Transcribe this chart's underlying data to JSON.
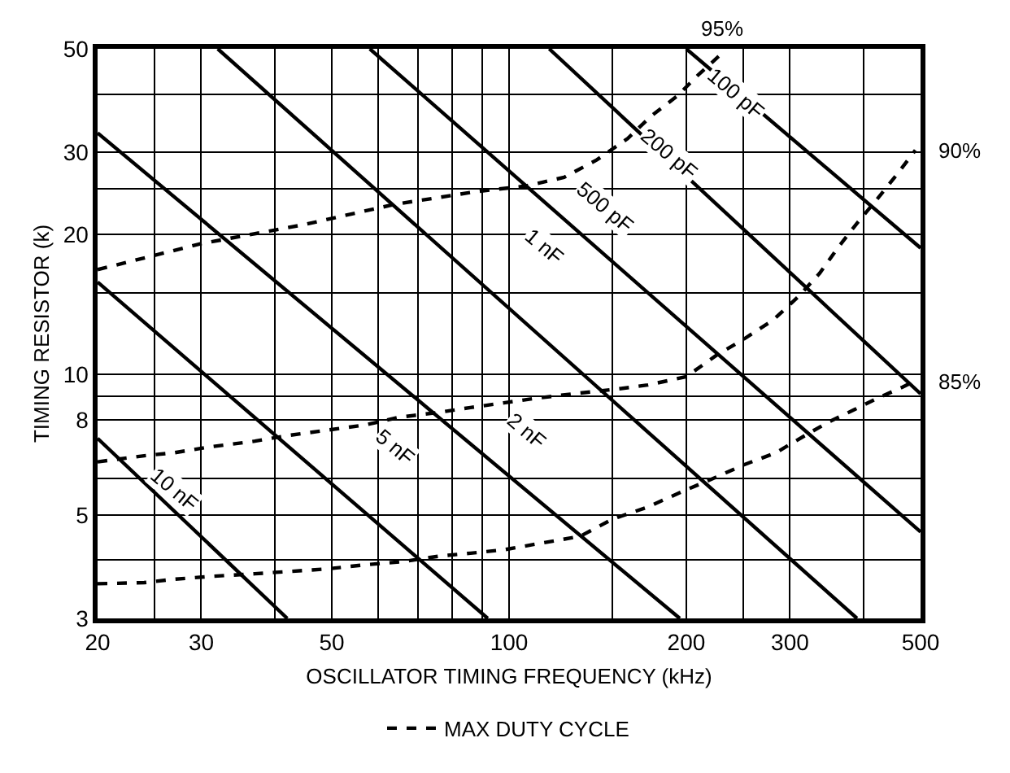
{
  "chart_data": {
    "type": "line",
    "xlabel": "OSCILLATOR TIMING FREQUENCY (kHz)",
    "ylabel": "TIMING RESISTOR (k)",
    "log": "xy",
    "grid": true,
    "legend": "bottom",
    "marker": "none",
    "xlim": [
      20,
      500
    ],
    "ylim": [
      3,
      50
    ],
    "xticks": [
      20,
      {
        "value": 25,
        "label": null
      },
      30,
      {
        "value": 40,
        "label": null
      },
      50,
      {
        "value": 60,
        "label": null
      },
      {
        "value": 70,
        "label": null
      },
      {
        "value": 80,
        "label": null
      },
      {
        "value": 90,
        "label": null
      },
      100,
      {
        "value": 150,
        "label": null
      },
      200,
      {
        "value": 250,
        "label": null
      },
      300,
      {
        "value": 400,
        "label": null
      },
      500
    ],
    "yticks": [
      3,
      {
        "value": 4,
        "label": null
      },
      5,
      {
        "value": 6,
        "label": null
      },
      8,
      {
        "value": 9,
        "label": null
      },
      10,
      {
        "value": 15,
        "label": null
      },
      20,
      {
        "value": 25,
        "label": null
      },
      30,
      {
        "value": 40,
        "label": null
      },
      50
    ],
    "series": [
      {
        "color": "#000000",
        "line_style": "solid",
        "x": [
          20,
          42
        ],
        "values": [
          7.3,
          3
        ]
      },
      {
        "color": "#000000",
        "line_style": "solid",
        "x": [
          20,
          92
        ],
        "values": [
          15.8,
          3
        ]
      },
      {
        "color": "#000000",
        "line_style": "solid",
        "x": [
          20,
          195
        ],
        "values": [
          33,
          3
        ]
      },
      {
        "color": "#000000",
        "line_style": "solid",
        "x": [
          32,
          390
        ],
        "values": [
          50,
          3
        ]
      },
      {
        "color": "#000000",
        "line_style": "solid",
        "x": [
          58,
          500
        ],
        "values": [
          50,
          4.6
        ]
      },
      {
        "color": "#000000",
        "line_style": "solid",
        "x": [
          117,
          500
        ],
        "values": [
          50,
          9.1
        ]
      },
      {
        "color": "#000000",
        "line_style": "solid",
        "x": [
          200,
          500
        ],
        "values": [
          50,
          18.7
        ]
      },
      {
        "name": "MAX DUTY CYCLE",
        "color": "#000000",
        "line_style": "dashed",
        "x": [
          20,
          30,
          45,
          64,
          88,
          107,
          124,
          141,
          159,
          174,
          193,
          209,
          230
        ],
        "values": [
          16.8,
          19.1,
          21,
          23.2,
          24.7,
          25.4,
          26.5,
          28.9,
          32.1,
          35.8,
          39.6,
          43.8,
          48.9
        ]
      },
      {
        "color": "#000000",
        "line_style": "dashed",
        "x": [
          20,
          24,
          27,
          31,
          37,
          42,
          49,
          57,
          65,
          76,
          86,
          98,
          111,
          129,
          151,
          172,
          200,
          225,
          250,
          281,
          310,
          337,
          364,
          392,
          422,
          455,
          490
        ],
        "values": [
          6.5,
          6.7,
          6.8,
          7.0,
          7.2,
          7.4,
          7.6,
          7.8,
          8.1,
          8.3,
          8.5,
          8.7,
          8.9,
          9.1,
          9.3,
          9.5,
          9.9,
          11.0,
          11.9,
          13.1,
          14.7,
          16.5,
          18.9,
          21.3,
          23.8,
          26.8,
          30.3
        ]
      },
      {
        "color": "#000000",
        "line_style": "dashed",
        "x": [
          20,
          24,
          27,
          31,
          37,
          42,
          49,
          57,
          66,
          76,
          86,
          98,
          111,
          132,
          150,
          172,
          196,
          223,
          250,
          284,
          318,
          348,
          385,
          422,
          466,
          490
        ],
        "values": [
          3.56,
          3.58,
          3.64,
          3.69,
          3.74,
          3.78,
          3.83,
          3.91,
          3.97,
          4.08,
          4.14,
          4.21,
          4.33,
          4.5,
          4.9,
          5.2,
          5.6,
          6.0,
          6.4,
          6.8,
          7.4,
          7.9,
          8.4,
          8.9,
          9.4,
          9.7
        ]
      }
    ],
    "annotations": [
      {
        "text": "100 pF",
        "x": 243,
        "y": 40
      },
      {
        "text": "200 pF",
        "x": 187,
        "y": 29.7
      },
      {
        "text": "500 pF",
        "x": 146,
        "y": 22.9
      },
      {
        "text": "1 nF",
        "x": 115,
        "y": 18.9
      },
      {
        "text": "2 nF",
        "x": 107,
        "y": 7.6
      },
      {
        "text": "5 nF",
        "x": 64,
        "y": 7.0
      },
      {
        "text": "10 nF",
        "x": 27,
        "y": 5.7
      },
      {
        "text": "95%",
        "x": 230,
        "y": 48.9
      },
      {
        "text": "90%",
        "x": 490,
        "y": 30.3
      },
      {
        "text": "85%",
        "x": 490,
        "y": 9.7
      }
    ]
  }
}
